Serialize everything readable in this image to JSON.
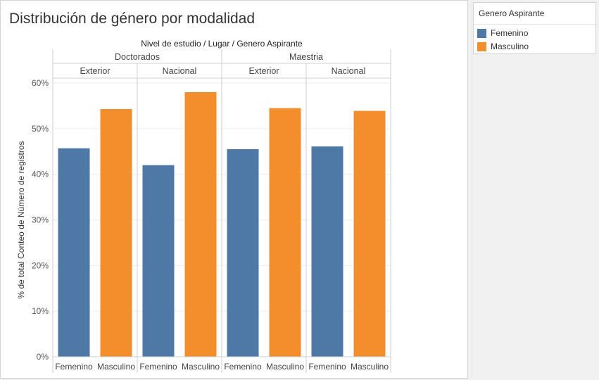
{
  "title": "Distribución de género por modalidad",
  "chart_data": {
    "type": "bar",
    "header": "Nivel de estudio / Lugar / Genero Aspirante",
    "ylabel": "% de total Conteo de Número de registros",
    "ylim": [
      0,
      60
    ],
    "yticks": [
      "0%",
      "10%",
      "20%",
      "30%",
      "40%",
      "50%",
      "60%"
    ],
    "yvalues": [
      0,
      10,
      20,
      30,
      40,
      50,
      60
    ],
    "levels": [
      {
        "name": "Doctorados",
        "places": [
          {
            "name": "Exterior",
            "bars": [
              {
                "cat": "Femenino",
                "value": 45.7
              },
              {
                "cat": "Masculino",
                "value": 54.3
              }
            ]
          },
          {
            "name": "Nacional",
            "bars": [
              {
                "cat": "Femenino",
                "value": 42.0
              },
              {
                "cat": "Masculino",
                "value": 58.0
              }
            ]
          }
        ]
      },
      {
        "name": "Maestria",
        "places": [
          {
            "name": "Exterior",
            "bars": [
              {
                "cat": "Femenino",
                "value": 45.5
              },
              {
                "cat": "Masculino",
                "value": 54.5
              }
            ]
          },
          {
            "name": "Nacional",
            "bars": [
              {
                "cat": "Femenino",
                "value": 46.1
              },
              {
                "cat": "Masculino",
                "value": 53.9
              }
            ]
          }
        ]
      }
    ],
    "colors": {
      "Femenino": "#4e79a7",
      "Masculino": "#f28e2b"
    },
    "grid": true,
    "legend_position": "right"
  },
  "legend": {
    "title": "Genero Aspirante",
    "items": [
      {
        "label": "Femenino",
        "color": "#4e79a7"
      },
      {
        "label": "Masculino",
        "color": "#f28e2b"
      }
    ]
  }
}
